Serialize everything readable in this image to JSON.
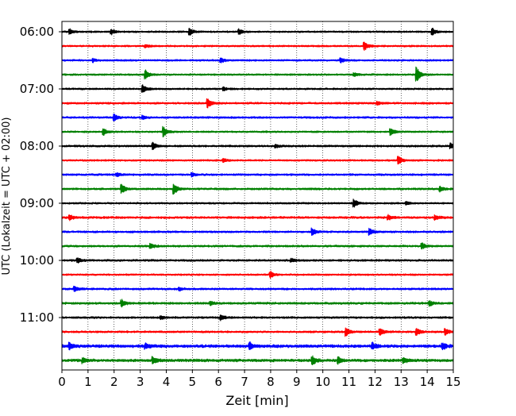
{
  "chart_data": {
    "type": "line",
    "subtype": "helicorder",
    "xlabel": "Zeit  [min]",
    "ylabel": "UTC (Lokalzeit = UTC + 02:00)",
    "xlim": [
      0,
      15
    ],
    "x_ticks": [
      "0",
      "1",
      "2",
      "3",
      "4",
      "5",
      "6",
      "7",
      "8",
      "9",
      "10",
      "11",
      "12",
      "13",
      "14",
      "15"
    ],
    "y_tick_labels": [
      "06:00",
      "07:00",
      "08:00",
      "09:00",
      "10:00",
      "11:00"
    ],
    "vertical_grid": "dotted, at each minute",
    "trace_interval_minutes": 15,
    "trace_colors": [
      "#000000",
      "#ff0000",
      "#0000ff",
      "#008000"
    ],
    "traces": [
      {
        "start": "06:00",
        "color": "#000000",
        "noise": 0.9,
        "events": [
          {
            "t": 0.3,
            "a": 3
          },
          {
            "t": 1.9,
            "a": 3
          },
          {
            "t": 4.9,
            "a": 4
          },
          {
            "t": 6.8,
            "a": 3
          },
          {
            "t": 14.2,
            "a": 4
          }
        ]
      },
      {
        "start": "06:15",
        "color": "#ff0000",
        "noise": 0.9,
        "events": [
          {
            "t": 3.2,
            "a": 2
          },
          {
            "t": 11.6,
            "a": 5
          }
        ]
      },
      {
        "start": "06:30",
        "color": "#0000ff",
        "noise": 0.9,
        "events": [
          {
            "t": 1.2,
            "a": 2
          },
          {
            "t": 6.1,
            "a": 3
          },
          {
            "t": 10.7,
            "a": 3
          }
        ]
      },
      {
        "start": "06:45",
        "color": "#008000",
        "noise": 0.9,
        "events": [
          {
            "t": 3.2,
            "a": 6
          },
          {
            "t": 11.2,
            "a": 2
          },
          {
            "t": 13.6,
            "a": 9
          }
        ]
      },
      {
        "start": "07:00",
        "color": "#000000",
        "noise": 0.9,
        "events": [
          {
            "t": 3.1,
            "a": 5
          },
          {
            "t": 6.2,
            "a": 2
          }
        ]
      },
      {
        "start": "07:15",
        "color": "#ff0000",
        "noise": 1.0,
        "events": [
          {
            "t": 5.6,
            "a": 5
          },
          {
            "t": 12.1,
            "a": 2
          }
        ]
      },
      {
        "start": "07:30",
        "color": "#0000ff",
        "noise": 1.0,
        "events": [
          {
            "t": 2.0,
            "a": 4
          },
          {
            "t": 3.1,
            "a": 2
          }
        ]
      },
      {
        "start": "07:45",
        "color": "#008000",
        "noise": 0.9,
        "events": [
          {
            "t": 1.6,
            "a": 4
          },
          {
            "t": 3.9,
            "a": 6
          },
          {
            "t": 12.6,
            "a": 4
          }
        ]
      },
      {
        "start": "08:00",
        "color": "#000000",
        "noise": 1.0,
        "events": [
          {
            "t": 3.5,
            "a": 4
          },
          {
            "t": 8.2,
            "a": 2
          },
          {
            "t": 14.9,
            "a": 3
          }
        ]
      },
      {
        "start": "08:15",
        "color": "#ff0000",
        "noise": 0.9,
        "events": [
          {
            "t": 6.2,
            "a": 2
          },
          {
            "t": 12.9,
            "a": 5
          }
        ]
      },
      {
        "start": "08:30",
        "color": "#0000ff",
        "noise": 1.0,
        "events": [
          {
            "t": 2.1,
            "a": 2
          },
          {
            "t": 5.0,
            "a": 2
          }
        ]
      },
      {
        "start": "08:45",
        "color": "#008000",
        "noise": 1.0,
        "events": [
          {
            "t": 2.3,
            "a": 5
          },
          {
            "t": 4.3,
            "a": 6
          },
          {
            "t": 14.5,
            "a": 3
          }
        ]
      },
      {
        "start": "09:00",
        "color": "#000000",
        "noise": 0.9,
        "events": [
          {
            "t": 11.2,
            "a": 5
          },
          {
            "t": 13.2,
            "a": 2
          }
        ]
      },
      {
        "start": "09:15",
        "color": "#ff0000",
        "noise": 1.1,
        "events": [
          {
            "t": 0.3,
            "a": 3
          },
          {
            "t": 12.5,
            "a": 3
          },
          {
            "t": 14.3,
            "a": 3
          }
        ]
      },
      {
        "start": "09:30",
        "color": "#0000ff",
        "noise": 1.0,
        "events": [
          {
            "t": 9.6,
            "a": 4
          },
          {
            "t": 11.8,
            "a": 4
          }
        ]
      },
      {
        "start": "09:45",
        "color": "#008000",
        "noise": 1.0,
        "events": [
          {
            "t": 3.4,
            "a": 3
          },
          {
            "t": 13.8,
            "a": 4
          }
        ]
      },
      {
        "start": "10:00",
        "color": "#000000",
        "noise": 1.0,
        "events": [
          {
            "t": 0.6,
            "a": 3
          },
          {
            "t": 8.8,
            "a": 2
          }
        ]
      },
      {
        "start": "10:15",
        "color": "#ff0000",
        "noise": 0.9,
        "events": [
          {
            "t": 8.0,
            "a": 4
          }
        ]
      },
      {
        "start": "10:30",
        "color": "#0000ff",
        "noise": 1.0,
        "events": [
          {
            "t": 0.5,
            "a": 3
          },
          {
            "t": 4.5,
            "a": 2
          }
        ]
      },
      {
        "start": "10:45",
        "color": "#008000",
        "noise": 1.1,
        "events": [
          {
            "t": 2.3,
            "a": 4
          },
          {
            "t": 5.7,
            "a": 2
          },
          {
            "t": 14.1,
            "a": 3
          }
        ]
      },
      {
        "start": "11:00",
        "color": "#000000",
        "noise": 1.0,
        "events": [
          {
            "t": 3.8,
            "a": 2
          },
          {
            "t": 6.1,
            "a": 3
          }
        ]
      },
      {
        "start": "11:15",
        "color": "#ff0000",
        "noise": 1.0,
        "events": [
          {
            "t": 10.9,
            "a": 5
          },
          {
            "t": 12.2,
            "a": 4
          },
          {
            "t": 13.6,
            "a": 4
          },
          {
            "t": 14.7,
            "a": 4
          }
        ]
      },
      {
        "start": "11:30",
        "color": "#0000ff",
        "noise": 1.5,
        "events": [
          {
            "t": 0.3,
            "a": 4
          },
          {
            "t": 3.2,
            "a": 3
          },
          {
            "t": 7.2,
            "a": 4
          },
          {
            "t": 11.9,
            "a": 4
          },
          {
            "t": 14.6,
            "a": 4
          }
        ]
      },
      {
        "start": "11:45",
        "color": "#008000",
        "noise": 1.4,
        "events": [
          {
            "t": 0.8,
            "a": 3
          },
          {
            "t": 3.5,
            "a": 4
          },
          {
            "t": 9.6,
            "a": 5
          },
          {
            "t": 10.6,
            "a": 4
          },
          {
            "t": 13.1,
            "a": 3
          }
        ]
      }
    ]
  }
}
